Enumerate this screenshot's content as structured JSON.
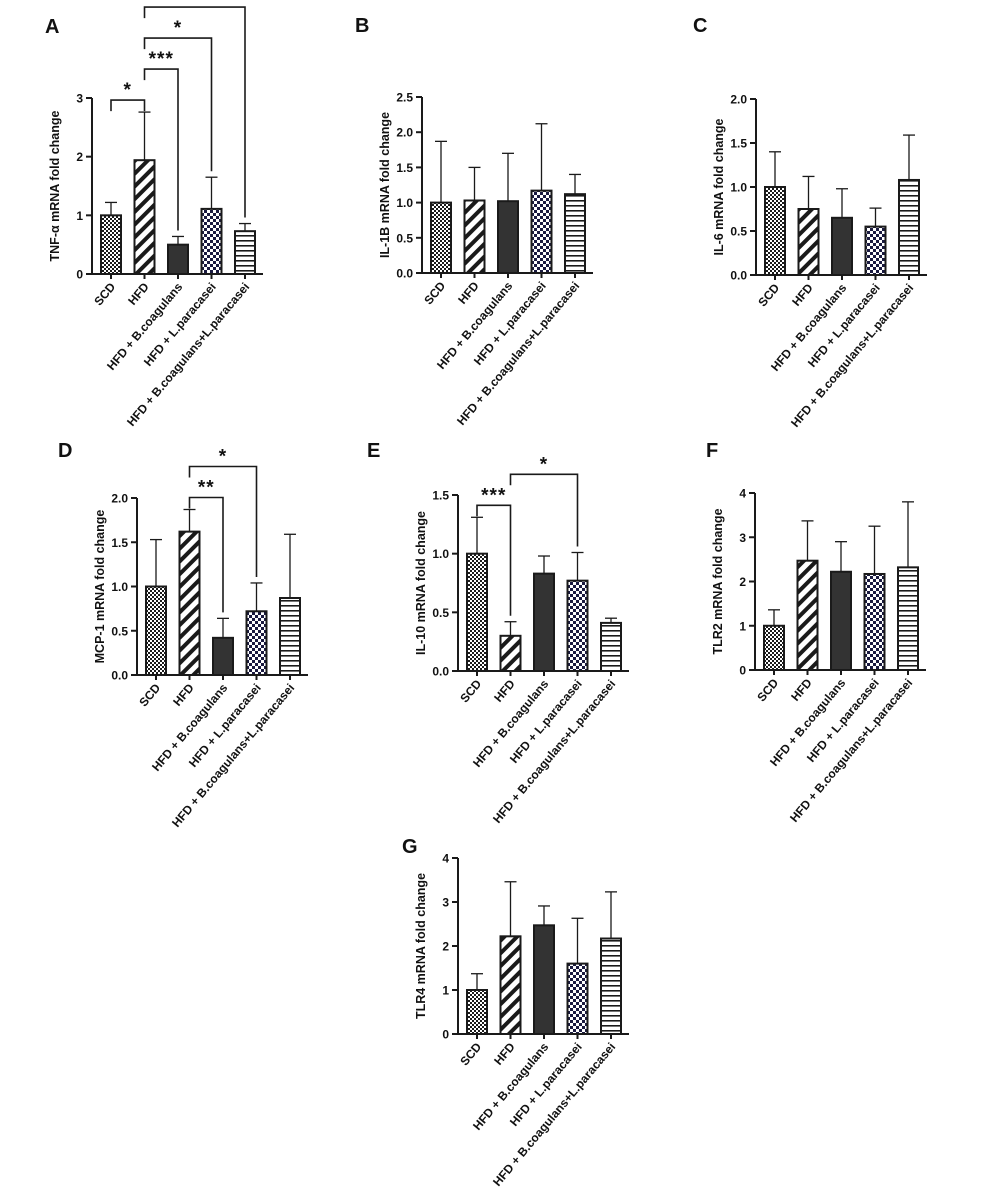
{
  "categories": [
    "SCD",
    "HFD",
    "HFD + B.coagulans",
    "HFD + L.paracasei",
    "HFD + B.coagulans+L.paracasei"
  ],
  "patterns": [
    "dotted",
    "diagonal-stripes",
    "solid-dark",
    "checker",
    "horizontal-stripes"
  ],
  "colors": {
    "bar_outline": "#1a1a1a",
    "dark_fill": "#333333",
    "background": "#ffffff"
  },
  "chart_data": [
    {
      "panel": "A",
      "type": "bar",
      "ylabel": "TNF-α mRNA fold change",
      "ylim": [
        0,
        3
      ],
      "yticks": [
        "0",
        "1",
        "2",
        "3"
      ],
      "values": [
        1.0,
        1.94,
        0.5,
        1.11,
        0.73
      ],
      "errors": [
        0.22,
        0.82,
        0.14,
        0.54,
        0.13
      ],
      "significance": [
        {
          "from": 0,
          "to": 1,
          "label": "*"
        },
        {
          "from": 1,
          "to": 2,
          "label": "***"
        },
        {
          "from": 1,
          "to": 3,
          "label": "*"
        },
        {
          "from": 1,
          "to": 4,
          "label": "**"
        }
      ]
    },
    {
      "panel": "B",
      "type": "bar",
      "ylabel": "IL-1B mRNA fold change",
      "ylim": [
        0,
        2.5
      ],
      "yticks": [
        "0.0",
        "0.5",
        "1.0",
        "1.5",
        "2.0",
        "2.5"
      ],
      "values": [
        1.0,
        1.03,
        1.02,
        1.17,
        1.12
      ],
      "errors": [
        0.87,
        0.47,
        0.68,
        0.95,
        0.28
      ],
      "significance": []
    },
    {
      "panel": "C",
      "type": "bar",
      "ylabel": "IL-6 mRNA fold change",
      "ylim": [
        0,
        2.0
      ],
      "yticks": [
        "0.0",
        "0.5",
        "1.0",
        "1.5",
        "2.0"
      ],
      "values": [
        1.0,
        0.75,
        0.65,
        0.55,
        1.08
      ],
      "errors": [
        0.4,
        0.37,
        0.33,
        0.21,
        0.51
      ],
      "significance": []
    },
    {
      "panel": "D",
      "type": "bar",
      "ylabel": "MCP-1 mRNA fold change",
      "ylim": [
        0,
        2.0
      ],
      "yticks": [
        "0.0",
        "0.5",
        "1.0",
        "1.5",
        "2.0"
      ],
      "values": [
        1.0,
        1.62,
        0.42,
        0.72,
        0.87
      ],
      "errors": [
        0.53,
        0.25,
        0.22,
        0.32,
        0.72
      ],
      "significance": [
        {
          "from": 1,
          "to": 2,
          "label": "**"
        },
        {
          "from": 1,
          "to": 3,
          "label": "*"
        }
      ]
    },
    {
      "panel": "E",
      "type": "bar",
      "ylabel": "IL-10 mRNA fold change",
      "ylim": [
        0,
        1.5
      ],
      "yticks": [
        "0.0",
        "0.5",
        "1.0",
        "1.5"
      ],
      "values": [
        1.0,
        0.3,
        0.83,
        0.77,
        0.41
      ],
      "errors": [
        0.31,
        0.12,
        0.15,
        0.24,
        0.04
      ],
      "significance": [
        {
          "from": 0,
          "to": 1,
          "label": "***"
        },
        {
          "from": 1,
          "to": 3,
          "label": "*"
        }
      ]
    },
    {
      "panel": "F",
      "type": "bar",
      "ylabel": "TLR2 mRNA fold change",
      "ylim": [
        0,
        4
      ],
      "yticks": [
        "0",
        "1",
        "2",
        "3",
        "4"
      ],
      "values": [
        1.0,
        2.47,
        2.22,
        2.17,
        2.32
      ],
      "errors": [
        0.36,
        0.9,
        0.68,
        1.08,
        1.48
      ],
      "significance": []
    },
    {
      "panel": "G",
      "type": "bar",
      "ylabel": "TLR4 mRNA fold change",
      "ylim": [
        0,
        4
      ],
      "yticks": [
        "0",
        "1",
        "2",
        "3",
        "4"
      ],
      "values": [
        1.0,
        2.22,
        2.47,
        1.6,
        2.17
      ],
      "errors": [
        0.37,
        1.24,
        0.44,
        1.03,
        1.06
      ],
      "significance": []
    }
  ]
}
